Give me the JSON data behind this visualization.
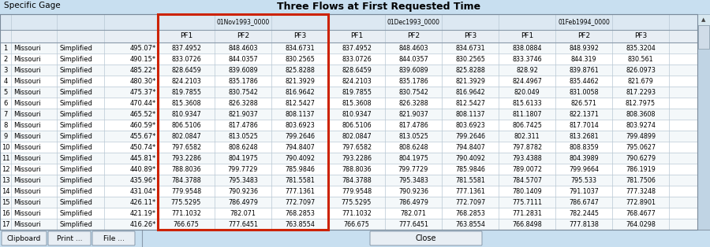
{
  "title": "Three Flows at First Requested Time",
  "title_label": "Specific Gage",
  "dates": [
    "01Nov1993_0000",
    "01Dec1993_0000",
    "01Feb1994_0000"
  ],
  "pf_labels": [
    "PF1",
    "PF2",
    "PF3"
  ],
  "row_nums": [
    "1",
    "2",
    "3",
    "4",
    "5",
    "6",
    "7",
    "8",
    "9",
    "10",
    "11",
    "12",
    "13",
    "14",
    "15",
    "16",
    "17"
  ],
  "col_state": [
    "Missouri",
    "Missouri",
    "Missouri",
    "Missouri",
    "Missouri",
    "Missouri",
    "Missouri",
    "Missouri",
    "Missouri",
    "Missouri",
    "Missouri",
    "Missouri",
    "Missouri",
    "Missouri",
    "Missouri",
    "Missouri",
    "Missouri"
  ],
  "col_method": [
    "Simplified",
    "Simplified",
    "Simplified",
    "Simplified",
    "Simplified",
    "Simplified",
    "Simplified",
    "Simplified",
    "Simplified",
    "Simplified",
    "Simplified",
    "Simplified",
    "Simplified",
    "Simplified",
    "Simplified",
    "Simplified",
    "Simplified"
  ],
  "col_val": [
    "495.07*",
    "490.15*",
    "485.22*",
    "480.30*",
    "475.37*",
    "470.44*",
    "465.52*",
    "460.59*",
    "455.67*",
    "450.74*",
    "445.81*",
    "440.89*",
    "435.96*",
    "431.04*",
    "426.11*",
    "421.19*",
    "416.26*"
  ],
  "pf1_nov": [
    "837.4952",
    "833.0726",
    "828.6459",
    "824.2103",
    "819.7855",
    "815.3608",
    "810.9347",
    "806.5106",
    "802.0847",
    "797.6582",
    "793.2286",
    "788.8036",
    "784.3788",
    "779.9548",
    "775.5295",
    "771.1032",
    "766.675"
  ],
  "pf2_nov": [
    "848.4603",
    "844.0357",
    "839.6089",
    "835.1786",
    "830.7542",
    "826.3288",
    "821.9037",
    "817.4786",
    "813.0525",
    "808.6248",
    "804.1975",
    "799.7729",
    "795.3483",
    "790.9236",
    "786.4979",
    "782.071",
    "777.6451"
  ],
  "pf3_nov": [
    "834.6731",
    "830.2565",
    "825.8288",
    "821.3929",
    "816.9642",
    "812.5427",
    "808.1137",
    "803.6923",
    "799.2646",
    "794.8407",
    "790.4092",
    "785.9846",
    "781.5581",
    "777.1361",
    "772.7097",
    "768.2853",
    "763.8554"
  ],
  "pf1_dec": [
    "837.4952",
    "833.0726",
    "828.6459",
    "824.2103",
    "819.7855",
    "815.3608",
    "810.9347",
    "806.5106",
    "802.0847",
    "797.6582",
    "793.2286",
    "788.8036",
    "784.3788",
    "779.9548",
    "775.5295",
    "771.1032",
    "766.675"
  ],
  "pf2_dec": [
    "848.4603",
    "844.0357",
    "839.6089",
    "835.1786",
    "830.7542",
    "826.3288",
    "821.9037",
    "817.4786",
    "813.0525",
    "808.6248",
    "804.1975",
    "799.7729",
    "795.3483",
    "790.9236",
    "786.4979",
    "782.071",
    "777.6451"
  ],
  "pf3_dec": [
    "834.6731",
    "830.2565",
    "825.8288",
    "821.3929",
    "816.9642",
    "812.5427",
    "808.1137",
    "803.6923",
    "799.2646",
    "794.8407",
    "790.4092",
    "785.9846",
    "781.5581",
    "777.1361",
    "772.7097",
    "768.2853",
    "763.8554"
  ],
  "pf1_feb": [
    "838.0884",
    "833.3746",
    "828.92",
    "824.4967",
    "820.049",
    "815.6133",
    "811.1807",
    "806.7425",
    "802.311",
    "797.8782",
    "793.4388",
    "789.0072",
    "784.5707",
    "780.1409",
    "775.7111",
    "771.2831",
    "766.8498"
  ],
  "pf2_feb": [
    "848.9392",
    "844.319",
    "839.8761",
    "835.4462",
    "831.0058",
    "826.571",
    "822.1371",
    "817.7014",
    "813.2681",
    "808.8359",
    "804.3989",
    "799.9664",
    "795.533",
    "791.1037",
    "786.6747",
    "782.2445",
    "777.8138"
  ],
  "pf3_feb": [
    "835.3204",
    "830.561",
    "826.0973",
    "821.679",
    "817.2293",
    "812.7975",
    "808.3608",
    "803.9274",
    "799.4899",
    "795.0627",
    "790.6279",
    "786.1919",
    "781.7506",
    "777.3248",
    "772.8901",
    "768.4677",
    "764.0298"
  ],
  "bg_color": "#c8dff0",
  "table_bg": "#ffffff",
  "header_bg": "#dce8f0",
  "row_even_bg": "#f4f8fa",
  "row_odd_bg": "#ffffff",
  "grid_color": "#b8c8d4",
  "highlight_border": "#cc2200",
  "bottom_buttons": [
    "Clipboard",
    "Print ...",
    "File ..."
  ],
  "close_button": "Close"
}
